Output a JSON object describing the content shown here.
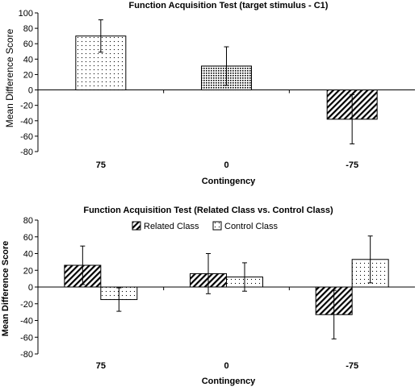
{
  "chart_data": [
    {
      "type": "bar",
      "title": "Function Acquisition Test (target stimulus - C1)",
      "xlabel": "Contingency",
      "ylabel": "Mean Difference Score",
      "categories": [
        "75",
        "0",
        "-75"
      ],
      "ylim": [
        -80,
        100
      ],
      "yticks": [
        -80,
        -60,
        -40,
        -20,
        0,
        20,
        40,
        60,
        80,
        100
      ],
      "legend": "none",
      "grid": false,
      "series": [
        {
          "values": [
            70,
            31,
            -38
          ],
          "errors": [
            21,
            25,
            32
          ],
          "patterns": [
            "dots-sparse",
            "dots-dense",
            "diagonal"
          ]
        }
      ]
    },
    {
      "type": "bar",
      "title": "Function Acquisition Test (Related Class vs. Control Class)",
      "xlabel": "Contingency",
      "ylabel": "Mean Difference Score",
      "categories": [
        "75",
        "0",
        "-75"
      ],
      "ylim": [
        -80,
        80
      ],
      "yticks": [
        -80,
        -60,
        -40,
        -20,
        0,
        20,
        40,
        60,
        80
      ],
      "legend": "top-center",
      "grid": false,
      "series": [
        {
          "name": "Related Class",
          "pattern": "diagonal",
          "values": [
            26,
            16,
            -33
          ],
          "errors": [
            23,
            24,
            29
          ]
        },
        {
          "name": "Control Class",
          "pattern": "dots-sparse",
          "values": [
            -15,
            12,
            33
          ],
          "errors": [
            14,
            17,
            28
          ]
        }
      ]
    }
  ]
}
